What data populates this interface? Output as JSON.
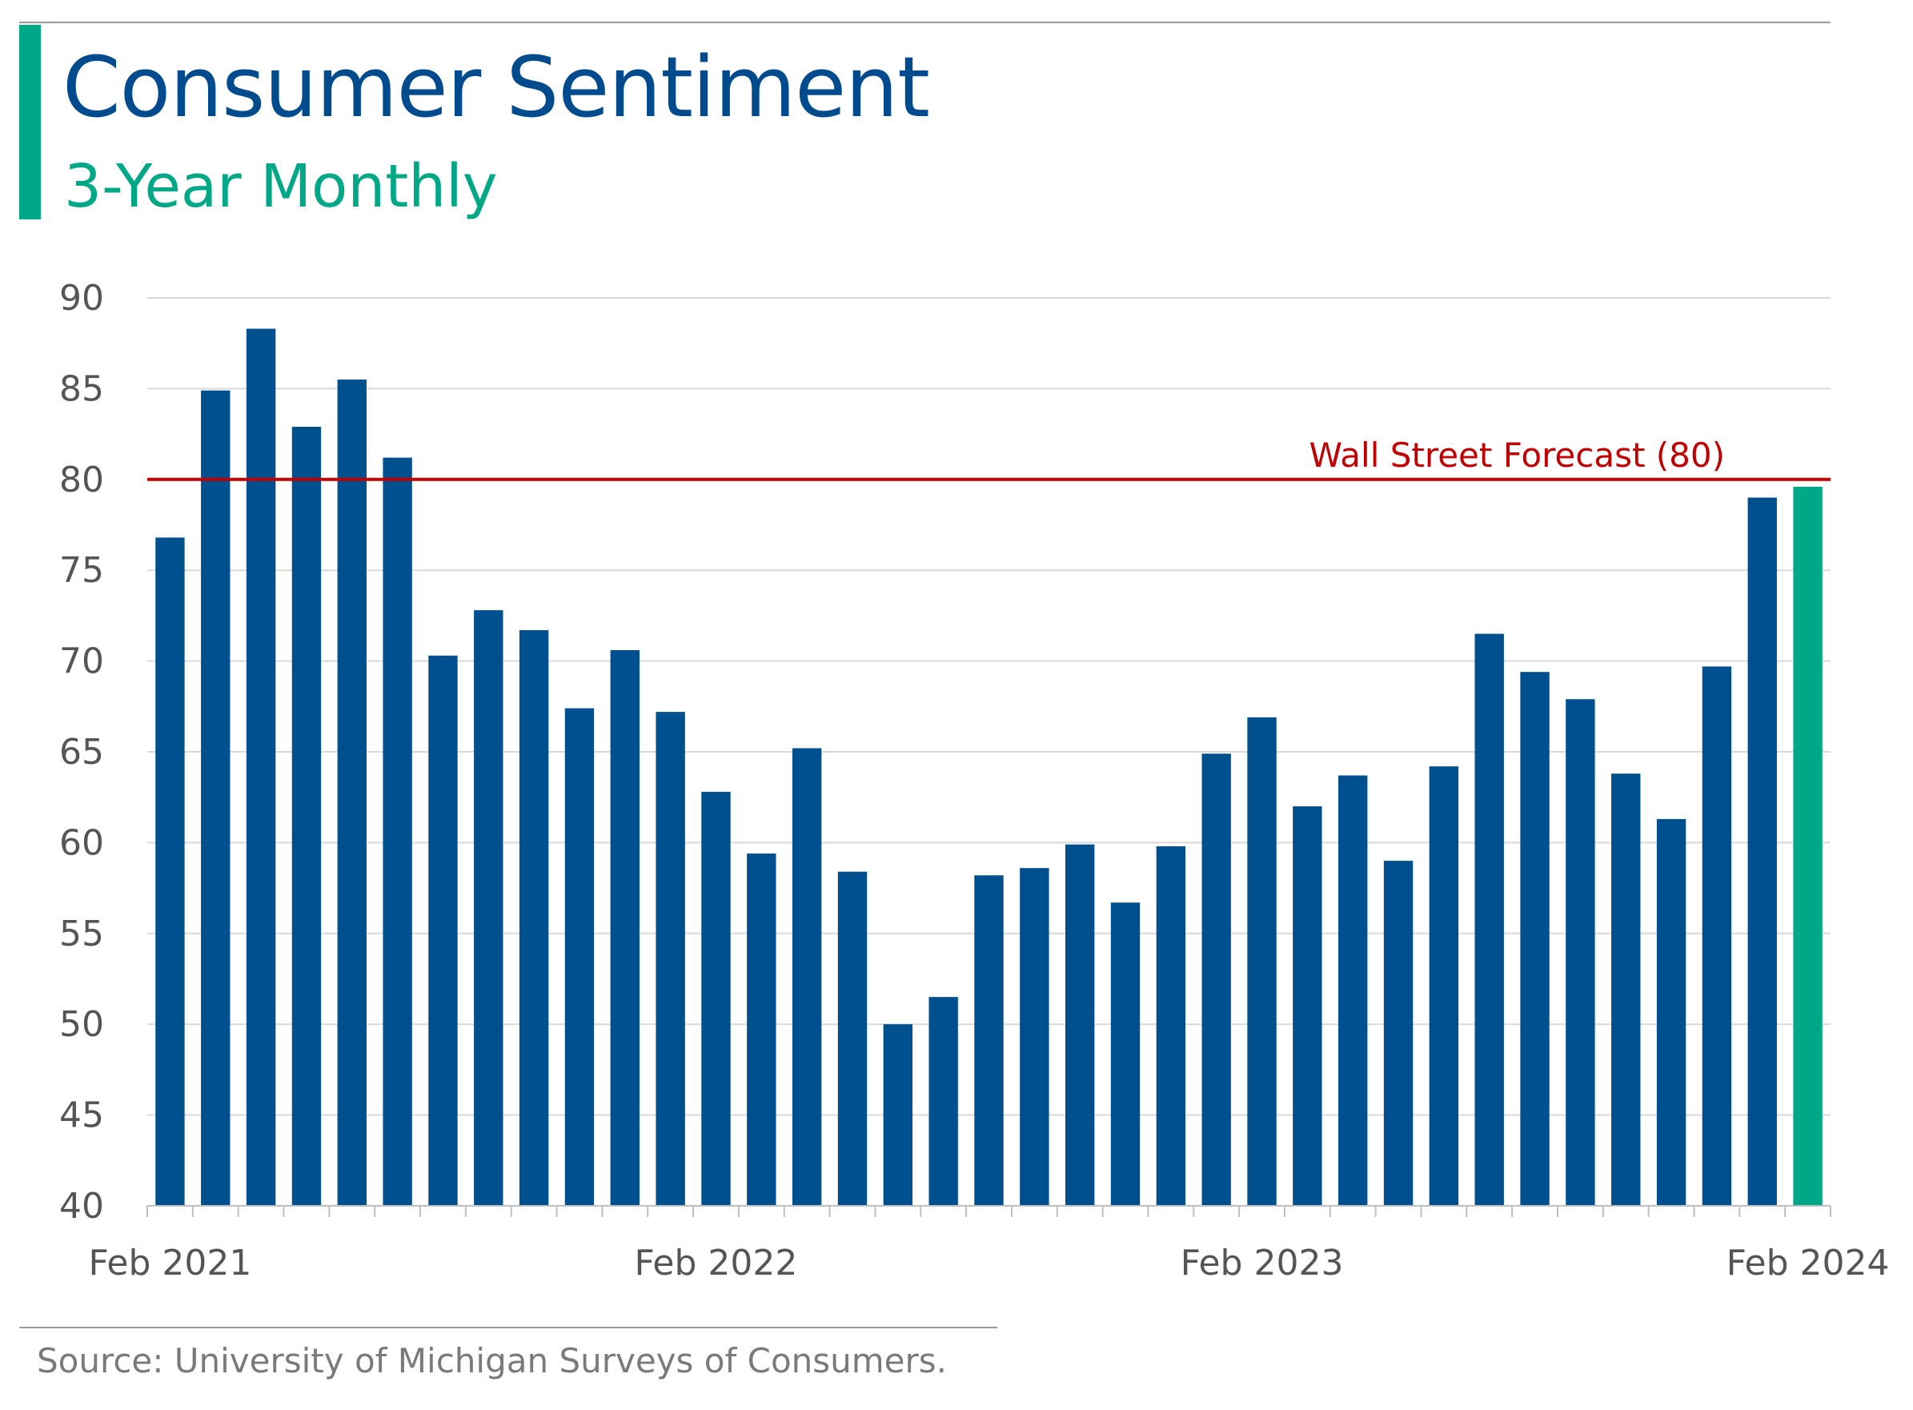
{
  "title": "Consumer Sentiment",
  "subtitle": "3-Year Monthly",
  "source": "Source: University of Michigan Surveys of Consumers.",
  "colors": {
    "bar": "#00508f",
    "highlight": "#00a887",
    "forecast": "#c00000",
    "title": "#004b8d"
  },
  "chart_data": {
    "type": "bar",
    "title": "Consumer Sentiment",
    "subtitle": "3-Year Monthly",
    "xlabel": "",
    "ylabel": "",
    "ylim": [
      40,
      90
    ],
    "yticks": [
      40,
      45,
      50,
      55,
      60,
      65,
      70,
      75,
      80,
      85,
      90
    ],
    "xtick_labels": [
      {
        "index": 0,
        "label": "Feb 2021"
      },
      {
        "index": 12,
        "label": "Feb 2022"
      },
      {
        "index": 24,
        "label": "Feb 2023"
      },
      {
        "index": 36,
        "label": "Feb 2024"
      }
    ],
    "categories": [
      "Feb 2021",
      "Mar 2021",
      "Apr 2021",
      "May 2021",
      "Jun 2021",
      "Jul 2021",
      "Aug 2021",
      "Sep 2021",
      "Oct 2021",
      "Nov 2021",
      "Dec 2021",
      "Jan 2022",
      "Feb 2022",
      "Mar 2022",
      "Apr 2022",
      "May 2022",
      "Jun 2022",
      "Jul 2022",
      "Aug 2022",
      "Sep 2022",
      "Oct 2022",
      "Nov 2022",
      "Dec 2022",
      "Jan 2023",
      "Feb 2023",
      "Mar 2023",
      "Apr 2023",
      "May 2023",
      "Jun 2023",
      "Jul 2023",
      "Aug 2023",
      "Sep 2023",
      "Oct 2023",
      "Nov 2023",
      "Dec 2023",
      "Jan 2024",
      "Feb 2024"
    ],
    "values": [
      76.8,
      84.9,
      88.3,
      82.9,
      85.5,
      81.2,
      70.3,
      72.8,
      71.7,
      67.4,
      70.6,
      67.2,
      62.8,
      59.4,
      65.2,
      58.4,
      50.0,
      51.5,
      58.2,
      58.6,
      59.9,
      56.7,
      59.8,
      64.9,
      66.9,
      62.0,
      63.7,
      59.0,
      64.2,
      71.5,
      69.4,
      67.9,
      63.8,
      61.3,
      69.7,
      79.0,
      79.6
    ],
    "highlight_index": 36,
    "reference_line": {
      "value": 80,
      "label": "Wall Street Forecast (80)"
    },
    "grid": true
  }
}
